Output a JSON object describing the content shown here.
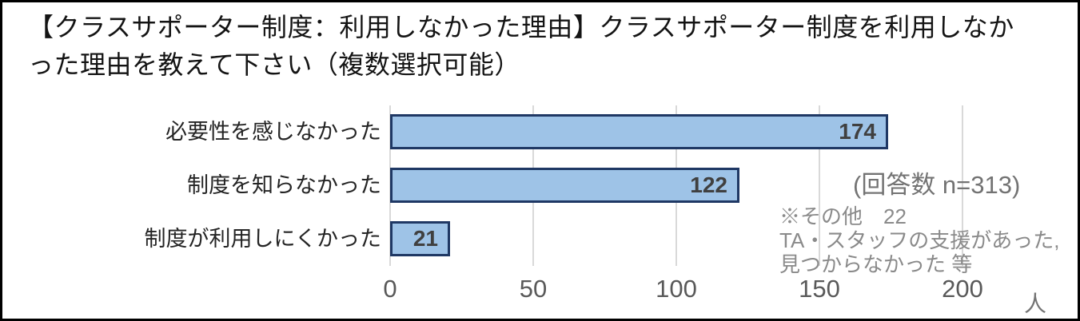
{
  "title": "【クラスサポーター制度：利用しなかった理由】クラスサポーター制度を利用しなかった理由を教えて下さい（複数選択可能）",
  "chart_data": {
    "type": "bar",
    "orientation": "horizontal",
    "title": "【クラスサポーター制度：利用しなかった理由】クラスサポーター制度を利用しなかった理由を教えて下さい（複数選択可能）",
    "categories": [
      "必要性を感じなかった",
      "制度を知らなかった",
      "制度が利用しにくかった"
    ],
    "values": [
      174,
      122,
      21
    ],
    "xlabel": "人",
    "ylabel": "",
    "xlim": [
      0,
      200
    ],
    "xticks": [
      0,
      50,
      100,
      150,
      200
    ],
    "grid": "vertical-only",
    "legend": "none",
    "colors": {
      "bar_fill": "#9ec3e7",
      "bar_border": "#1f3864",
      "gridline": "#d9d9d9",
      "value_label": "#404040",
      "axis_label": "#595959",
      "annotation": "#8a8a8a"
    },
    "annotations": {
      "respondents": "(回答数 n=313)",
      "other_note_lines": [
        "※その他　22",
        "TA・スタッフの支援があった,",
        "見つからなかった 等"
      ]
    }
  }
}
